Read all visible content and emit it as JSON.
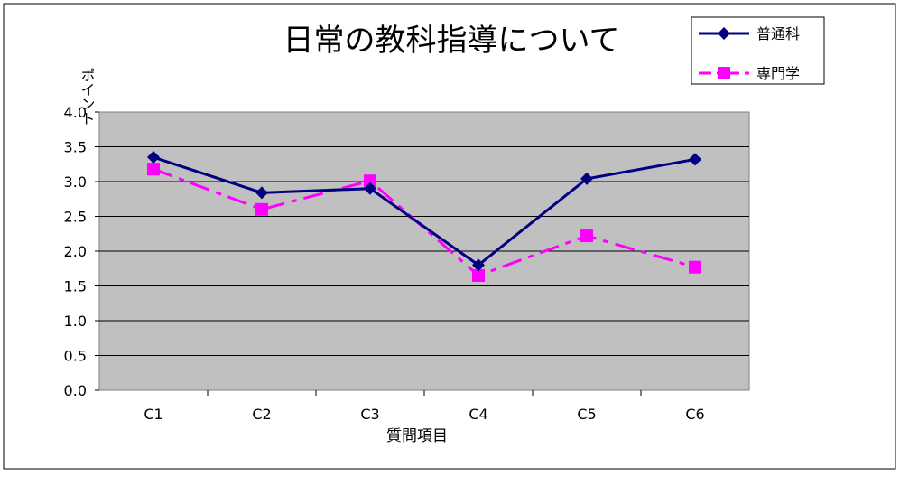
{
  "chart_data": {
    "type": "line",
    "title": "日常の教科指導について",
    "xlabel": "質問項目",
    "ylabel": "ポイント",
    "categories": [
      "C1",
      "C2",
      "C3",
      "C4",
      "C5",
      "C6"
    ],
    "ylim": [
      0,
      4
    ],
    "yticks": [
      "0.0",
      "0.5",
      "1.0",
      "1.5",
      "2.0",
      "2.5",
      "3.0",
      "3.5",
      "4.0"
    ],
    "grid": true,
    "legend_position": "top-right",
    "plot_background": "#c0c0c0",
    "series": [
      {
        "name": "普通科",
        "values": [
          3.35,
          2.84,
          2.9,
          1.8,
          3.04,
          3.32
        ],
        "color": "#000080",
        "marker": "diamond",
        "line": "solid"
      },
      {
        "name": "専門学",
        "values": [
          3.18,
          2.6,
          3.01,
          1.65,
          2.22,
          1.77
        ],
        "color": "#ff00ff",
        "marker": "square",
        "line": "dashdot"
      }
    ]
  }
}
